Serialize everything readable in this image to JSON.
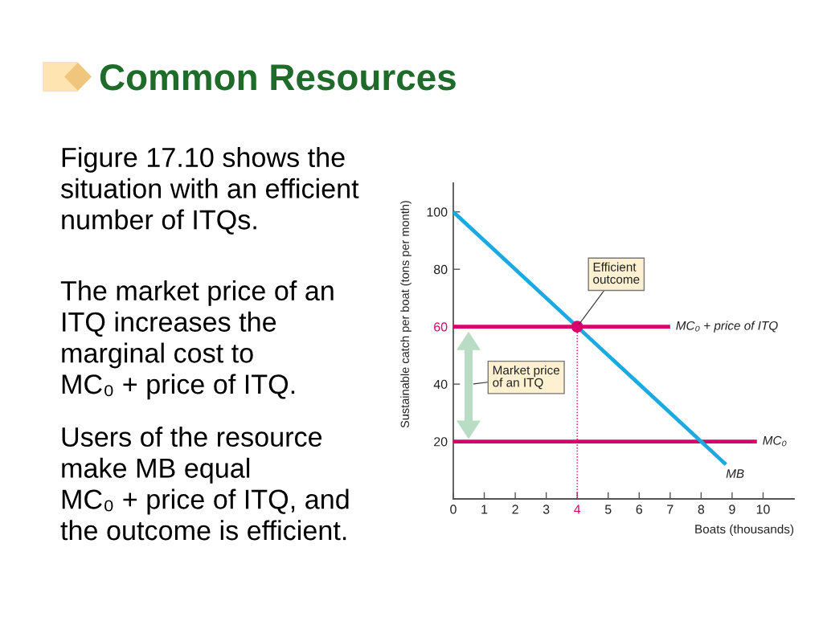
{
  "chart_data": {
    "type": "line",
    "title": "Common Resources",
    "xlabel": "Boats (thousands)",
    "ylabel": "Sustainable catch per boat (tons per month)",
    "series": [
      {
        "name": "MB",
        "color": "#1ba9e1",
        "x": [
          0,
          8.8
        ],
        "values": [
          100,
          12
        ]
      },
      {
        "name": "MC₀ + price of ITQ",
        "color": "#d9006c",
        "x": [
          0,
          7
        ],
        "values": [
          60,
          60
        ]
      },
      {
        "name": "MC₀",
        "color": "#d9006c",
        "x": [
          0,
          9.8
        ],
        "values": [
          20,
          20
        ]
      },
      {
        "color": "#d9006c",
        "x": [
          4,
          4
        ],
        "values": [
          0,
          60
        ],
        "line_style": "dotted"
      },
      {
        "type": "scatter",
        "color": "#d9006c",
        "x": [
          4
        ],
        "values": [
          60
        ],
        "marker": "circle"
      }
    ],
    "xlim": [
      0,
      11
    ],
    "ylim": [
      0,
      110
    ],
    "xticks": [
      0,
      1,
      2,
      3,
      4,
      5,
      6,
      7,
      8,
      9,
      10
    ],
    "yticks": [
      20,
      40,
      60,
      80,
      100
    ],
    "annotations": [
      "Figure 17.10 shows the\nsituation with an efficient\nnumber of ITQs.",
      "The market price of an\nITQ increases the\nmarginal cost to\nMC₀ + price of ITQ.",
      "Users of the resource\nmake MB equal\nMC₀ + price of ITQ, and\nthe outcome is efficient.",
      {
        "text": "Efficient\noutcome",
        "x": 4,
        "y": 60
      },
      "Market price\nof an ITQ"
    ]
  }
}
